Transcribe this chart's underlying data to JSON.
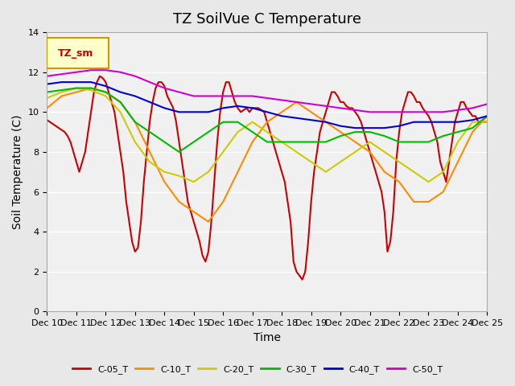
{
  "title": "TZ SoilVue C Temperature",
  "xlabel": "Time",
  "ylabel": "Soil Temperature (C)",
  "ylim": [
    0,
    14
  ],
  "yticks": [
    0,
    2,
    4,
    6,
    8,
    10,
    12,
    14
  ],
  "x_start": "2023-12-10",
  "x_end": "2023-12-25",
  "x_tick_labels": [
    "Dec 10",
    "Dec 11",
    "Dec 12",
    "Dec 13",
    "Dec 14",
    "Dec 15",
    "Dec 16",
    "Dec 17",
    "Dec 18",
    "Dec 19",
    "Dec 20",
    "Dec 21",
    "Dec 22",
    "Dec 23",
    "Dec 24",
    "Dec 25"
  ],
  "legend_label": "TZ_sm",
  "series": {
    "C-05_T": {
      "color": "#cc0000",
      "linewidth": 1.5,
      "data_x": [
        0,
        0.1,
        0.2,
        0.3,
        0.4,
        0.5,
        0.6,
        0.7,
        0.8,
        0.9,
        1.0,
        1.1,
        1.2,
        1.3,
        1.4,
        1.5,
        1.6,
        1.7,
        1.8,
        1.9,
        2.0,
        2.1,
        2.2,
        2.3,
        2.4,
        2.5,
        2.6,
        2.7,
        2.8,
        2.9,
        3.0,
        3.1,
        3.2,
        3.3,
        3.4,
        3.5,
        3.6,
        3.7,
        3.8,
        3.9,
        4.0,
        4.1,
        4.2,
        4.3,
        4.4,
        4.5,
        4.6,
        4.7,
        4.8,
        4.9,
        5.0,
        5.1,
        5.2,
        5.3,
        5.4,
        5.5,
        5.6,
        5.7,
        5.8,
        5.9,
        6.0,
        6.1,
        6.2,
        6.3,
        6.4,
        6.5,
        6.6,
        6.7,
        6.8,
        6.9,
        7.0,
        7.1,
        7.2,
        7.3,
        7.4,
        7.5,
        7.6,
        7.7,
        7.8,
        7.9,
        8.0,
        8.1,
        8.2,
        8.3,
        8.4,
        8.5,
        8.6,
        8.7,
        8.8,
        8.9,
        9.0,
        9.1,
        9.2,
        9.3,
        9.4,
        9.5,
        9.6,
        9.7,
        9.8,
        9.9,
        10.0,
        10.1,
        10.2,
        10.3,
        10.4,
        10.5,
        10.6,
        10.7,
        10.8,
        10.9,
        11.0,
        11.1,
        11.2,
        11.3,
        11.4,
        11.5,
        11.6,
        11.7,
        11.8,
        11.9,
        12.0,
        12.1,
        12.2,
        12.3,
        12.4,
        12.5,
        12.6,
        12.7,
        12.8,
        12.9,
        13.0,
        13.1,
        13.2,
        13.3,
        13.4,
        13.5,
        13.6,
        13.7,
        13.8,
        13.9,
        14.0,
        14.1,
        14.2,
        14.3,
        14.4,
        14.5,
        14.6,
        14.7,
        14.8,
        14.9,
        15.0
      ],
      "data_y": [
        9.6,
        9.5,
        9.4,
        9.3,
        9.2,
        9.1,
        9.0,
        8.8,
        8.5,
        8.0,
        7.5,
        7.0,
        7.5,
        8.0,
        9.0,
        10.0,
        11.0,
        11.5,
        11.8,
        11.7,
        11.5,
        11.0,
        10.5,
        10.0,
        9.0,
        8.0,
        7.0,
        5.5,
        4.5,
        3.5,
        3.0,
        3.2,
        4.5,
        6.5,
        8.0,
        9.5,
        10.5,
        11.2,
        11.5,
        11.5,
        11.3,
        10.8,
        10.5,
        10.2,
        9.5,
        8.5,
        7.5,
        6.5,
        5.5,
        5.0,
        4.5,
        4.0,
        3.5,
        2.8,
        2.5,
        3.0,
        4.5,
        6.5,
        8.5,
        10.0,
        11.0,
        11.5,
        11.5,
        11.0,
        10.5,
        10.2,
        10.0,
        10.1,
        10.2,
        10.0,
        10.2,
        10.2,
        10.2,
        10.1,
        10.0,
        9.5,
        9.0,
        8.5,
        8.0,
        7.5,
        7.0,
        6.5,
        5.5,
        4.5,
        2.5,
        2.0,
        1.8,
        1.6,
        2.0,
        3.5,
        5.5,
        7.0,
        8.0,
        9.0,
        9.5,
        10.0,
        10.5,
        11.0,
        11.0,
        10.8,
        10.5,
        10.5,
        10.3,
        10.2,
        10.2,
        10.0,
        9.8,
        9.5,
        9.0,
        8.5,
        8.0,
        7.5,
        7.0,
        6.5,
        6.0,
        5.0,
        3.0,
        3.5,
        5.0,
        7.5,
        9.0,
        10.0,
        10.5,
        11.0,
        11.0,
        10.8,
        10.5,
        10.5,
        10.2,
        10.0,
        9.8,
        9.5,
        9.0,
        8.5,
        7.5,
        7.0,
        6.5,
        7.5,
        8.5,
        9.5,
        10.0,
        10.5,
        10.5,
        10.2,
        10.0,
        9.8,
        9.8,
        9.5,
        9.5,
        9.5,
        9.5
      ]
    },
    "C-10_T": {
      "color": "#ff8c00",
      "linewidth": 1.5,
      "data_x": [
        0,
        0.5,
        1.0,
        1.5,
        2.0,
        2.5,
        3.0,
        3.5,
        4.0,
        4.5,
        5.0,
        5.5,
        6.0,
        6.5,
        7.0,
        7.5,
        8.0,
        8.5,
        9.0,
        9.5,
        10.0,
        10.5,
        11.0,
        11.5,
        12.0,
        12.5,
        13.0,
        13.5,
        14.0,
        14.5,
        15.0
      ],
      "data_y": [
        10.2,
        10.8,
        11.0,
        11.2,
        11.0,
        10.5,
        9.5,
        8.0,
        6.5,
        5.5,
        5.0,
        4.5,
        5.5,
        7.0,
        8.5,
        9.5,
        10.0,
        10.5,
        10.0,
        9.5,
        9.0,
        8.5,
        8.0,
        7.0,
        6.5,
        5.5,
        5.5,
        6.0,
        7.5,
        9.0,
        9.8
      ]
    },
    "C-20_T": {
      "color": "#cccc00",
      "linewidth": 1.5,
      "data_x": [
        0,
        0.5,
        1.0,
        1.5,
        2.0,
        2.5,
        3.0,
        3.5,
        4.0,
        4.5,
        5.0,
        5.5,
        6.0,
        6.5,
        7.0,
        7.5,
        8.0,
        8.5,
        9.0,
        9.5,
        10.0,
        10.5,
        11.0,
        11.5,
        12.0,
        12.5,
        13.0,
        13.5,
        14.0,
        14.5,
        15.0
      ],
      "data_y": [
        10.7,
        11.0,
        11.2,
        11.1,
        10.8,
        10.0,
        8.5,
        7.5,
        7.0,
        6.8,
        6.5,
        7.0,
        8.0,
        9.0,
        9.5,
        9.0,
        8.5,
        8.0,
        7.5,
        7.0,
        7.5,
        8.0,
        8.5,
        8.0,
        7.5,
        7.0,
        6.5,
        7.0,
        8.5,
        9.5,
        9.5
      ]
    },
    "C-30_T": {
      "color": "#00bb00",
      "linewidth": 1.5,
      "data_x": [
        0,
        0.5,
        1.0,
        1.5,
        2.0,
        2.5,
        3.0,
        3.5,
        4.0,
        4.5,
        5.0,
        5.5,
        6.0,
        6.5,
        7.0,
        7.5,
        8.0,
        8.5,
        9.0,
        9.5,
        10.0,
        10.5,
        11.0,
        11.5,
        12.0,
        12.5,
        13.0,
        13.5,
        14.0,
        14.5,
        15.0
      ],
      "data_y": [
        11.0,
        11.1,
        11.2,
        11.2,
        11.0,
        10.5,
        9.5,
        9.0,
        8.5,
        8.0,
        8.5,
        9.0,
        9.5,
        9.5,
        9.0,
        8.5,
        8.5,
        8.5,
        8.5,
        8.5,
        8.8,
        9.0,
        9.0,
        8.8,
        8.5,
        8.5,
        8.5,
        8.8,
        9.0,
        9.2,
        9.8
      ]
    },
    "C-40_T": {
      "color": "#0000cc",
      "linewidth": 1.5,
      "data_x": [
        0,
        0.5,
        1.0,
        1.5,
        2.0,
        2.5,
        3.0,
        3.5,
        4.0,
        4.5,
        5.0,
        5.5,
        6.0,
        6.5,
        7.0,
        7.5,
        8.0,
        8.5,
        9.0,
        9.5,
        10.0,
        10.5,
        11.0,
        11.5,
        12.0,
        12.5,
        13.0,
        13.5,
        14.0,
        14.5,
        15.0
      ],
      "data_y": [
        11.4,
        11.5,
        11.5,
        11.5,
        11.3,
        11.0,
        10.8,
        10.5,
        10.2,
        10.0,
        10.0,
        10.0,
        10.2,
        10.3,
        10.2,
        10.0,
        9.8,
        9.7,
        9.6,
        9.5,
        9.3,
        9.2,
        9.2,
        9.2,
        9.3,
        9.5,
        9.5,
        9.5,
        9.5,
        9.6,
        9.8
      ]
    },
    "C-50_T": {
      "color": "#cc00cc",
      "linewidth": 1.5,
      "data_x": [
        0,
        0.5,
        1.0,
        1.5,
        2.0,
        2.5,
        3.0,
        3.5,
        4.0,
        4.5,
        5.0,
        5.5,
        6.0,
        6.5,
        7.0,
        7.5,
        8.0,
        8.5,
        9.0,
        9.5,
        10.0,
        10.5,
        11.0,
        11.5,
        12.0,
        12.5,
        13.0,
        13.5,
        14.0,
        14.5,
        15.0
      ],
      "data_y": [
        11.8,
        11.9,
        12.0,
        12.1,
        12.1,
        12.0,
        11.8,
        11.5,
        11.2,
        11.0,
        10.8,
        10.8,
        10.8,
        10.8,
        10.8,
        10.7,
        10.6,
        10.5,
        10.4,
        10.3,
        10.2,
        10.1,
        10.0,
        10.0,
        10.0,
        10.0,
        10.0,
        10.0,
        10.1,
        10.2,
        10.4
      ]
    }
  },
  "bg_color": "#e8e8e8",
  "plot_bg_color": "#f0f0f0",
  "grid_color": "#ffffff",
  "title_fontsize": 13,
  "axis_label_fontsize": 10,
  "tick_fontsize": 8,
  "legend_box_color": "#ffffcc",
  "legend_box_border": "#cc9900",
  "legend_text_color": "#cc0000"
}
